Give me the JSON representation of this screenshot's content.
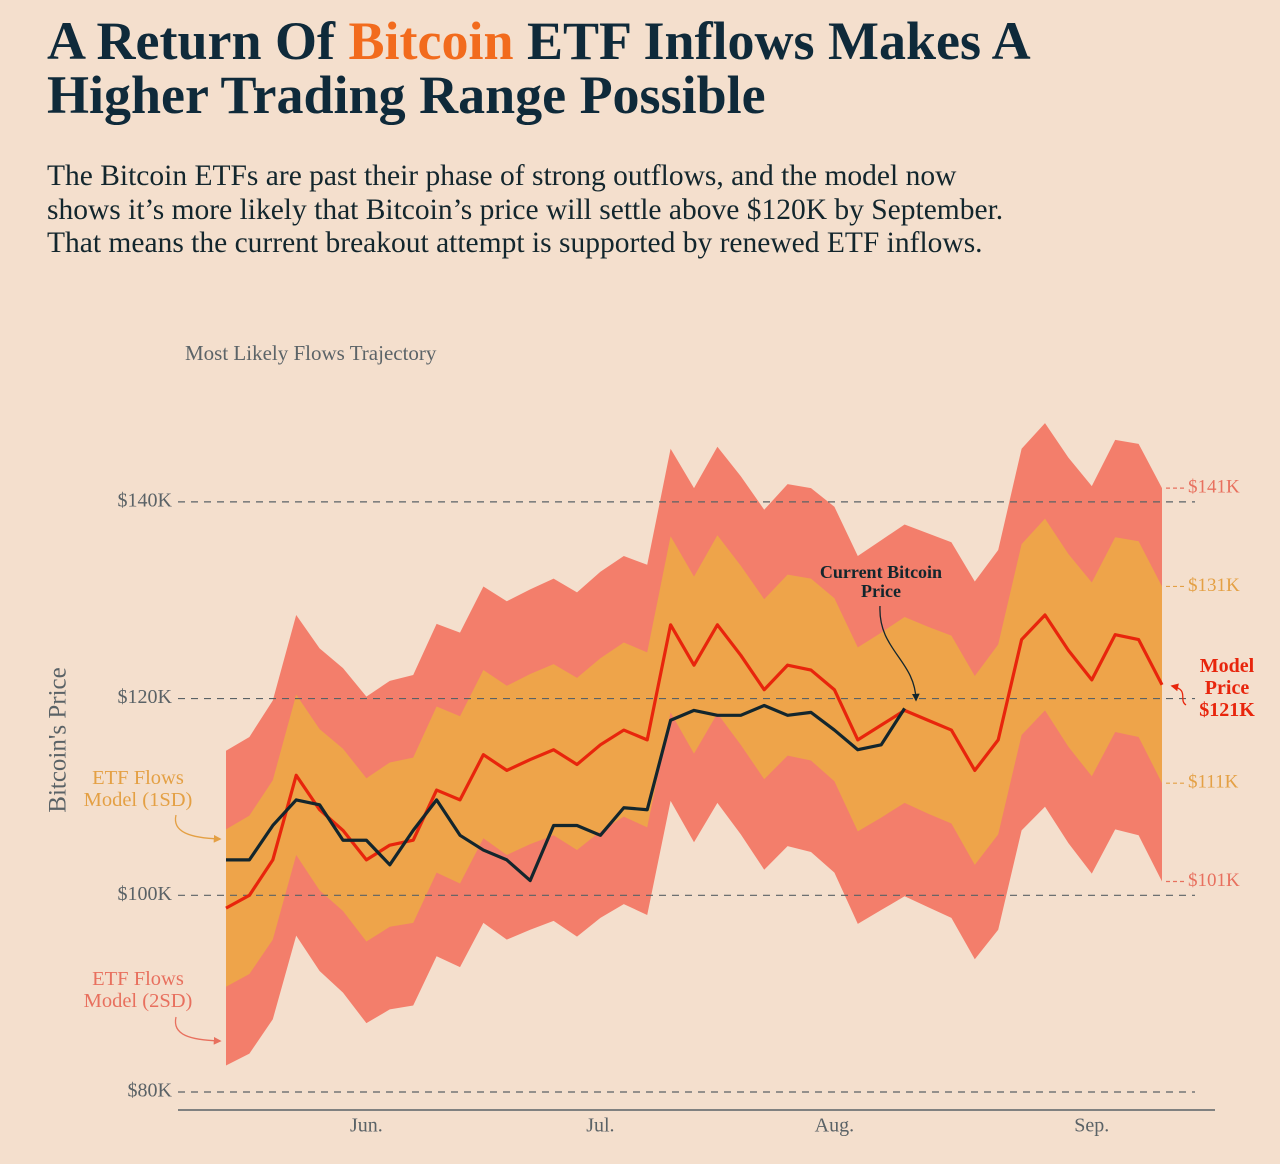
{
  "chart_data": {
    "type": "line",
    "title": [
      "A Return Of ",
      "Bitcoin",
      " ETF Inflows Makes A Higher Trading Range Possible"
    ],
    "subtitle": "The Bitcoin ETFs are past their phase of strong outflows, and the model now shows it’s more likely that Bitcoin’s price will settle above $120K by September. That means the current breakout attempt is supported by renewed ETF inflows.",
    "chart_label": "Most Likely Flows Trajectory",
    "y_label": "Bitcoin's Price",
    "categories": [
      null,
      null,
      null,
      null,
      null,
      null,
      "Jun.",
      null,
      null,
      null,
      null,
      null,
      null,
      null,
      null,
      null,
      "Jul.",
      null,
      null,
      null,
      null,
      null,
      null,
      null,
      null,
      null,
      "Aug.",
      null,
      null,
      null,
      null,
      null,
      null,
      null,
      null,
      null,
      null,
      "Sep.",
      null,
      null,
      null
    ],
    "ylim": [
      78000,
      150000
    ],
    "yticks": [
      {
        "value": 80000,
        "label": "$80K"
      },
      {
        "value": 100000,
        "label": "$100K"
      },
      {
        "value": 120000,
        "label": "$120K"
      },
      {
        "value": 140000,
        "label": "$140K"
      }
    ],
    "grid": true,
    "series": [
      {
        "name": "Model Price",
        "color": "#e8250c",
        "end_label": "$121K",
        "values": [
          98700,
          100000,
          103600,
          112200,
          108700,
          106600,
          103600,
          105100,
          105600,
          110700,
          109700,
          114300,
          112700,
          113800,
          114800,
          113300,
          115300,
          116800,
          115800,
          127500,
          123400,
          127500,
          124400,
          120900,
          123400,
          122900,
          120900,
          115800,
          117300,
          118800,
          117800,
          116800,
          112700,
          115800,
          126000,
          128500,
          124900,
          121900,
          126500,
          126000,
          121400
        ]
      },
      {
        "name": "Current Bitcoin Price",
        "color": "#13262d",
        "values": [
          103600,
          103600,
          107100,
          109700,
          109200,
          105600,
          105600,
          103100,
          106600,
          109700,
          106100,
          104600,
          103600,
          101500,
          107100,
          107100,
          106100,
          108900,
          108700,
          117800,
          118800,
          118300,
          118300,
          119300,
          118300,
          118600,
          116800,
          114800,
          115300,
          119000,
          null,
          null,
          null,
          null,
          null,
          null,
          null,
          null,
          null,
          null,
          null
        ]
      }
    ],
    "bands": [
      {
        "name": "ETF Flows Model (2SD)",
        "color": "#f37e6b",
        "label_color": "#e8705e",
        "upper_label": "$141K",
        "lower_label": "$101K",
        "upper": [
          114700,
          116100,
          119800,
          128500,
          125100,
          123100,
          120200,
          121800,
          122400,
          127600,
          126700,
          131400,
          129900,
          131100,
          132200,
          130800,
          132900,
          134500,
          133600,
          145400,
          141400,
          145600,
          142600,
          139200,
          141800,
          141400,
          139500,
          134500,
          136100,
          137700,
          136800,
          135900,
          131900,
          135100,
          145400,
          148000,
          144500,
          141600,
          146300,
          145900,
          141400
        ],
        "lower": [
          82700,
          83900,
          87400,
          95900,
          92300,
          90100,
          87000,
          88400,
          88800,
          93800,
          92700,
          97200,
          95500,
          96500,
          97400,
          95800,
          97700,
          99100,
          98000,
          109600,
          105400,
          109400,
          106200,
          102600,
          105000,
          104400,
          102300,
          97100,
          98500,
          99900,
          98800,
          97700,
          93500,
          96500,
          106600,
          109000,
          105300,
          102200,
          106700,
          106100,
          101400
        ]
      },
      {
        "name": "ETF Flows Model (1SD)",
        "color": "#eea44a",
        "label_color": "#e4a044",
        "upper_label": "$131K",
        "lower_label": "$111K",
        "upper": [
          106700,
          108100,
          111700,
          120400,
          116900,
          114900,
          111900,
          113500,
          114000,
          119200,
          118200,
          122900,
          121300,
          122500,
          123500,
          122100,
          124100,
          125700,
          124700,
          136500,
          132400,
          136600,
          133500,
          130100,
          132600,
          132200,
          130200,
          125200,
          126700,
          128300,
          127300,
          126400,
          122300,
          125500,
          135700,
          138300,
          134700,
          131800,
          136400,
          136000,
          131400
        ],
        "lower": [
          90700,
          92000,
          95500,
          104100,
          100500,
          98400,
          95300,
          96800,
          97200,
          102300,
          101200,
          105800,
          104100,
          105200,
          106100,
          104600,
          106500,
          108000,
          106900,
          118600,
          114400,
          118500,
          115300,
          111800,
          114200,
          113700,
          111600,
          106500,
          107900,
          109400,
          108300,
          107300,
          103100,
          106200,
          116300,
          118800,
          115100,
          112100,
          116600,
          116100,
          111400
        ]
      }
    ]
  }
}
